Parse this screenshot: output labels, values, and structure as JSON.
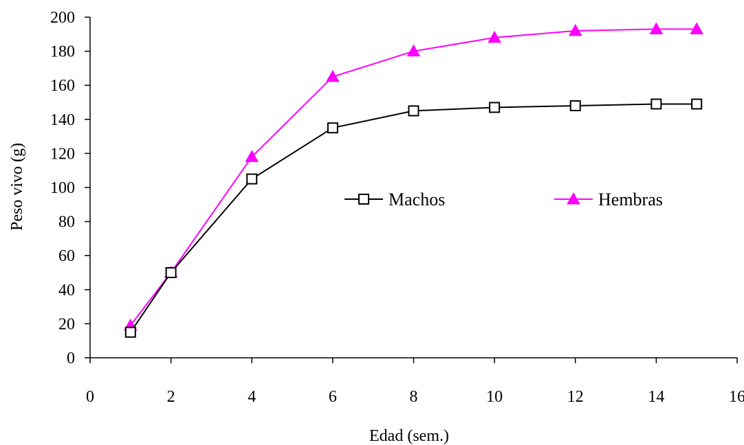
{
  "chart_data": {
    "type": "line",
    "title": "",
    "xlabel": "Edad (sem.)",
    "ylabel": "Peso vivo (g)",
    "xlim": [
      0,
      16
    ],
    "ylim": [
      0,
      200
    ],
    "xticks": [
      0,
      2,
      4,
      6,
      8,
      10,
      12,
      14,
      16
    ],
    "yticks": [
      0,
      20,
      40,
      60,
      80,
      100,
      120,
      140,
      160,
      180,
      200
    ],
    "grid": false,
    "legend_position": "center-right",
    "x": [
      1,
      2,
      4,
      6,
      8,
      10,
      12,
      14,
      15
    ],
    "series": [
      {
        "name": "Machos",
        "values": [
          15,
          50,
          105,
          135,
          145,
          147,
          148,
          149,
          149
        ],
        "color": "#000000",
        "marker": "square-open"
      },
      {
        "name": "Hembras",
        "values": [
          19,
          50,
          118,
          165,
          180,
          188,
          192,
          193,
          193
        ],
        "color": "#ff00ff",
        "marker": "triangle-filled"
      }
    ]
  }
}
